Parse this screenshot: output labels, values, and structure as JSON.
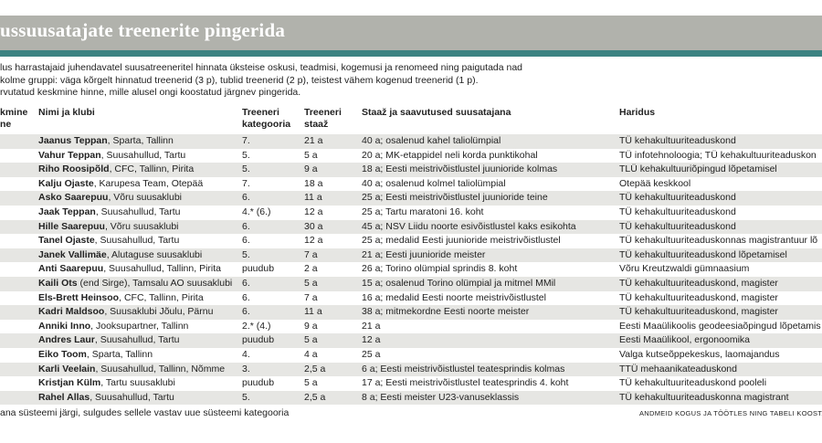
{
  "title": "ussuusatajate treenerite pingerida",
  "intro": [
    "lus harrastajaid juhendavatel suusatreeneritel hinnata üksteise oskusi, teadmisi, kogemusi ja renomeed ning paigutada nad",
    "kolme gruppi: väga kõrgelt hinnatud treenerid (3 p), tublid treenerid (2 p), teistest vähem kogenud treenerid (1 p).",
    "rvutatud keskmine hinne, mille alusel ongi koostatud järgnev pingerida."
  ],
  "columns": {
    "rank": "kmine\nne",
    "name": "Nimi ja klubi",
    "category": "Treeneri\nkategooria",
    "tenure": "Treeneri\nstaaž",
    "achievements": "Staaž ja saavutused suusatajana",
    "education": "Haridus"
  },
  "rows": [
    {
      "name": "Jaanus Teppan",
      "club": ", Sparta, Tallinn",
      "category": "7.",
      "tenure": "21 a",
      "achievements": "40 a; osalenud kahel taliolümpial",
      "education": "TÜ kehakultuuriteaduskond"
    },
    {
      "name": "Vahur Teppan",
      "club": ", Suusahullud, Tartu",
      "category": "5.",
      "tenure": "5 a",
      "achievements": "20 a; MK-etappidel neli korda punktikohal",
      "education": "TÜ infotehnoloogia; TÜ kehakultuuriteaduskon"
    },
    {
      "name": "Riho Roosipõld",
      "club": ", CFC, Tallinn, Pirita",
      "category": "5.",
      "tenure": "9 a",
      "achievements": "18 a; Eesti meistrivõistlustel juunioride kolmas",
      "education": "TLÜ kehakultuuriõpingud lõpetamisel"
    },
    {
      "name": "Kalju Ojaste",
      "club": ", Karupesa Team, Otepää",
      "category": "7.",
      "tenure": "18 a",
      "achievements": "40 a; osalenud kolmel taliolümpial",
      "education": "Otepää keskkool"
    },
    {
      "name": "Asko Saarepuu",
      "club": ", Võru suusaklubi",
      "category": "6.",
      "tenure": "11 a",
      "achievements": "25 a; Eesti meistrivõistlustel juunioride teine",
      "education": "TÜ kehakultuuriteaduskond"
    },
    {
      "name": "Jaak Teppan",
      "club": ", Suusahullud, Tartu",
      "category": "4.* (6.)",
      "tenure": "12 a",
      "achievements": "25 a; Tartu maratoni 16. koht",
      "education": "TÜ kehakultuuriteaduskond"
    },
    {
      "name": "Hille Saarepuu",
      "club": ", Võru suusaklubi",
      "category": "6.",
      "tenure": "30 a",
      "achievements": "45 a; NSV Liidu noorte esivõistlustel kaks esikohta",
      "education": "TÜ kehakultuuriteaduskond"
    },
    {
      "name": "Tanel Ojaste",
      "club": ", Suusahullud, Tartu",
      "category": "6.",
      "tenure": "12 a",
      "achievements": "25 a; medalid Eesti juunioride meistrivõistlustel",
      "education": "TÜ kehakultuuriteaduskonnas magistrantuur lõ"
    },
    {
      "name": "Janek Vallimäe",
      "club": ", Alutaguse suusaklubi",
      "category": "5.",
      "tenure": "7 a",
      "achievements": "21 a; Eesti juunioride meister",
      "education": "TÜ kehakultuuriteaduskond lõpetamisel"
    },
    {
      "name": "Anti Saarepuu",
      "club": ", Suusahullud, Tallinn, Pirita",
      "category": "puudub",
      "tenure": "2 a",
      "achievements": "26 a; Torino olümpial sprindis 8. koht",
      "education": "Võru Kreutzwaldi gümnaasium"
    },
    {
      "name": "Kaili Ots",
      "club": " (end Sirge), Tamsalu AO suusaklubi",
      "category": "6.",
      "tenure": "5 a",
      "achievements": "15 a; osalenud Torino olümpial ja mitmel MMil",
      "education": "TÜ kehakultuuriteaduskond, magister"
    },
    {
      "name": "Els-Brett Heinsoo",
      "club": ", CFC, Tallinn, Pirita",
      "category": "6.",
      "tenure": "7 a",
      "achievements": "16 a; medalid Eesti noorte meistrivõistlustel",
      "education": "TÜ kehakultuuriteaduskond, magister"
    },
    {
      "name": "Kadri Maldsoo",
      "club": ", Suusaklubi Jõulu, Pärnu",
      "category": "6.",
      "tenure": "11 a",
      "achievements": "38 a; mitmekordne Eesti noorte meister",
      "education": "TÜ kehakultuuriteaduskond, magister"
    },
    {
      "name": "Anniki Inno",
      "club": ", Jooksupartner, Tallinn",
      "category": "2.* (4.)",
      "tenure": "9 a",
      "achievements": "21 a",
      "education": "Eesti Maaülikoolis geodeesiaõpingud lõpetamis"
    },
    {
      "name": "Andres Laur",
      "club": ", Suusahullud, Tartu",
      "category": "puudub",
      "tenure": "5 a",
      "achievements": "12 a",
      "education": "Eesti Maaülikool, ergonoomika"
    },
    {
      "name": "Eiko Toom",
      "club": ", Sparta, Tallinn",
      "category": "4.",
      "tenure": "4 a",
      "achievements": "25 a",
      "education": "Valga kutseõppekeskus, laomajandus"
    },
    {
      "name": "Karli Veelain",
      "club": ", Suusahullud, Tallinn, Nõmme",
      "category": "3.",
      "tenure": "2,5 a",
      "achievements": "6 a; Eesti meistrivõistlustel teatesprindis kolmas",
      "education": "TTÜ mehaanikateaduskond"
    },
    {
      "name": "Kristjan Külm",
      "club": ", Tartu suusaklubi",
      "category": "puudub",
      "tenure": "5 a",
      "achievements": "17 a; Eesti meistrivõistlustel teatesprindis 4. koht",
      "education": "TÜ kehakultuuriteaduskond pooleli"
    },
    {
      "name": "Rahel Allas",
      "club": ", Suusahullud, Tartu",
      "category": "5.",
      "tenure": "2,5 a",
      "achievements": "8 a; Eesti meister U23-vanuseklassis",
      "education": "TÜ kehakultuuriteaduskonna magistrant"
    }
  ],
  "footnote": "ana süsteemi järgi, sulgudes sellele vastav uue süsteemi kategooria",
  "credit": "ANDMEID KOGUS JA TÖÖTLES NING TABELI KOOSTAS",
  "colors": {
    "title_bar": "#b1b2ac",
    "accent": "#3c8382",
    "row_stripe": "#e6e6e3"
  }
}
